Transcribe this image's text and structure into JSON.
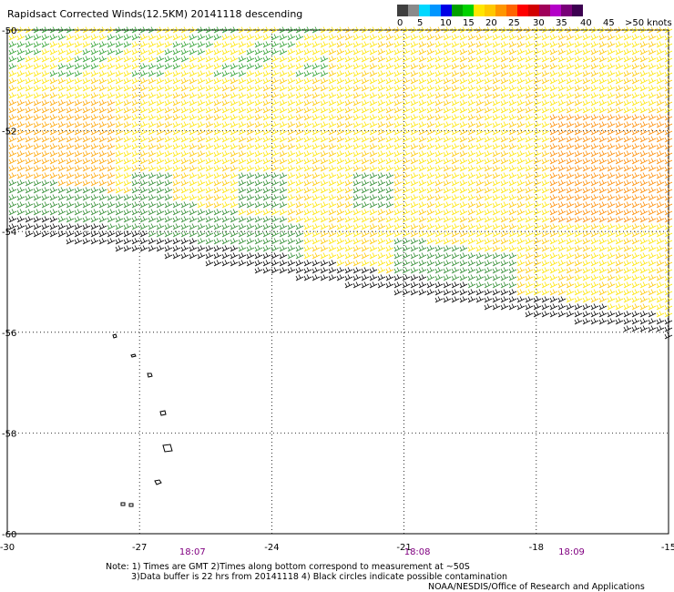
{
  "title": "Rapidsact Corrected Winds(12.5KM) 20141118 descending",
  "legend": {
    "ticks": [
      "0",
      "5",
      "10",
      "15",
      "20",
      "25",
      "30",
      "35",
      "40",
      "45",
      ">50 knots"
    ],
    "colors": [
      "#3f3f3f",
      "#8a8a8a",
      "#00d8ff",
      "#0096ff",
      "#0000e6",
      "#00a000",
      "#00d200",
      "#ffe600",
      "#ffc800",
      "#ff9600",
      "#ff6400",
      "#ff0000",
      "#d20000",
      "#a0005a",
      "#b400c8",
      "#780078",
      "#3c0050"
    ]
  },
  "map": {
    "x_ticks": [
      "-30",
      "-27",
      "-24",
      "-21",
      "-18",
      "-15"
    ],
    "y_ticks": [
      "-50",
      "-52",
      "-54",
      "-56",
      "-58",
      "-60"
    ],
    "lon_range": [
      -30,
      -15
    ],
    "lat_range": [
      -60,
      -50
    ],
    "times": [
      {
        "label": "18:07",
        "lon": -25.8
      },
      {
        "label": "18:08",
        "lon": -20.7
      },
      {
        "label": "18:09",
        "lon": -17.2
      }
    ]
  },
  "notes": {
    "line1": "Note: 1) Times are GMT 2)Times along bottom correspond to measurement at ~50S",
    "line2": "3)Data buffer is 22 hrs from 20141118 4) Black circles indicate possible contamination",
    "credit": "NOAA/NESDIS/Office of Research and Applications"
  }
}
